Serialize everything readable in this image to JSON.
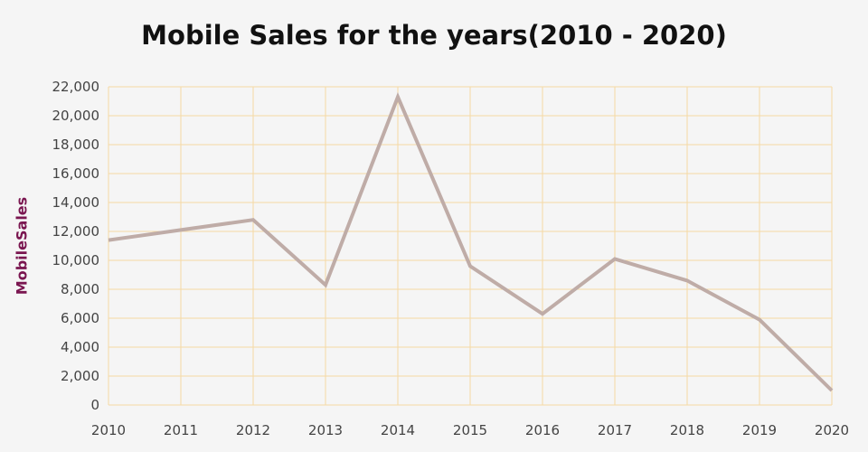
{
  "chart_data": {
    "type": "line",
    "title": "Mobile Sales for the years(2010 - 2020)",
    "xlabel": "",
    "ylabel": "MobileSales",
    "x": [
      "2010",
      "2011",
      "2012",
      "2013",
      "2014",
      "2015",
      "2016",
      "2017",
      "2018",
      "2019",
      "2020"
    ],
    "series": [
      {
        "values": [
          11400,
          12100,
          12800,
          8300,
          21300,
          9600,
          6300,
          10100,
          8600,
          5900,
          1000
        ]
      }
    ],
    "ylim": [
      0,
      22000
    ],
    "yticks": [
      "0",
      "2,000",
      "4,000",
      "6,000",
      "8,000",
      "10,000",
      "12,000",
      "14,000",
      "16,000",
      "18,000",
      "20,000",
      "22,000"
    ],
    "ytick_values": [
      0,
      2000,
      4000,
      6000,
      8000,
      10000,
      12000,
      14000,
      16000,
      18000,
      20000,
      22000
    ],
    "grid": true,
    "legend": "none",
    "colors": {
      "line": "#bfaca7",
      "grid": "#f5d9a4",
      "title": "#111111",
      "ylabel": "#7a1650",
      "background": "#f5f5f5"
    }
  }
}
